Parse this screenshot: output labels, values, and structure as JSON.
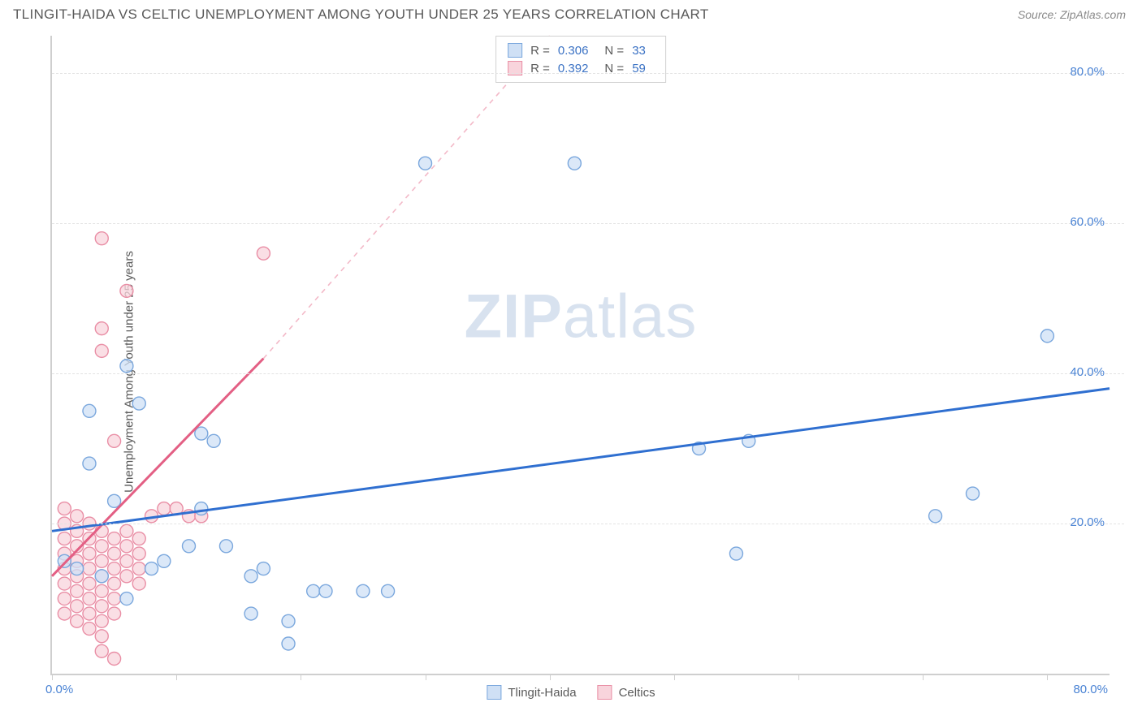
{
  "header": {
    "title": "TLINGIT-HAIDA VS CELTIC UNEMPLOYMENT AMONG YOUTH UNDER 25 YEARS CORRELATION CHART",
    "source": "Source: ZipAtlas.com"
  },
  "chart": {
    "type": "scatter",
    "ylabel": "Unemployment Among Youth under 25 years",
    "watermark_a": "ZIP",
    "watermark_b": "atlas",
    "background_color": "#ffffff",
    "grid_color": "#e3e3e3",
    "axis_color": "#cfcfcf",
    "xlim": [
      0,
      85
    ],
    "ylim": [
      0,
      85
    ],
    "x_min_label": "0.0%",
    "x_max_label": "80.0%",
    "y_tick_values": [
      20,
      40,
      60,
      80
    ],
    "y_tick_labels": [
      "20.0%",
      "40.0%",
      "60.0%",
      "80.0%"
    ],
    "x_tick_values": [
      0,
      10,
      20,
      30,
      40,
      50,
      60,
      70,
      80
    ],
    "marker_radius": 8,
    "marker_stroke_width": 1.4,
    "series": {
      "a": {
        "name": "Tlingit-Haida",
        "fill": "#cfe0f5",
        "stroke": "#7aa7dd",
        "line_color": "#2f6fd0",
        "line_dash_color": "#a9c6ec",
        "R": "0.306",
        "N": "33",
        "trend": {
          "x1": 0,
          "y1": 19,
          "x2": 85,
          "y2": 38
        },
        "trend_dash": null,
        "points": [
          [
            3,
            35
          ],
          [
            7,
            36
          ],
          [
            3,
            28
          ],
          [
            6,
            41
          ],
          [
            5,
            23
          ],
          [
            1,
            15
          ],
          [
            2,
            14
          ],
          [
            4,
            13
          ],
          [
            8,
            14
          ],
          [
            9,
            15
          ],
          [
            11,
            17
          ],
          [
            12,
            22
          ],
          [
            14,
            17
          ],
          [
            13,
            31
          ],
          [
            16,
            13
          ],
          [
            17,
            14
          ],
          [
            16,
            8
          ],
          [
            19,
            7
          ],
          [
            19,
            4
          ],
          [
            21,
            11
          ],
          [
            22,
            11
          ],
          [
            25,
            11
          ],
          [
            27,
            11
          ],
          [
            30,
            68
          ],
          [
            42,
            68
          ],
          [
            52,
            30
          ],
          [
            56,
            31
          ],
          [
            55,
            16
          ],
          [
            71,
            21
          ],
          [
            74,
            24
          ],
          [
            80,
            45
          ],
          [
            6,
            10
          ],
          [
            12,
            32
          ]
        ]
      },
      "b": {
        "name": "Celtics",
        "fill": "#f8d4dc",
        "stroke": "#e98ea5",
        "line_color": "#e35f84",
        "line_dash_color": "#f3b9c8",
        "R": "0.392",
        "N": "59",
        "trend": {
          "x1": 0,
          "y1": 13,
          "x2": 17,
          "y2": 42
        },
        "trend_dash": {
          "x1": 17,
          "y1": 42,
          "x2": 40,
          "y2": 85
        },
        "points": [
          [
            1,
            12
          ],
          [
            1,
            14
          ],
          [
            1,
            16
          ],
          [
            1,
            18
          ],
          [
            1,
            20
          ],
          [
            1,
            10
          ],
          [
            1,
            8
          ],
          [
            1,
            22
          ],
          [
            2,
            11
          ],
          [
            2,
            13
          ],
          [
            2,
            15
          ],
          [
            2,
            17
          ],
          [
            2,
            19
          ],
          [
            2,
            21
          ],
          [
            2,
            9
          ],
          [
            2,
            7
          ],
          [
            3,
            12
          ],
          [
            3,
            14
          ],
          [
            3,
            16
          ],
          [
            3,
            18
          ],
          [
            3,
            20
          ],
          [
            3,
            10
          ],
          [
            3,
            8
          ],
          [
            3,
            6
          ],
          [
            4,
            13
          ],
          [
            4,
            15
          ],
          [
            4,
            17
          ],
          [
            4,
            19
          ],
          [
            4,
            11
          ],
          [
            4,
            9
          ],
          [
            4,
            7
          ],
          [
            4,
            5
          ],
          [
            5,
            14
          ],
          [
            5,
            16
          ],
          [
            5,
            18
          ],
          [
            5,
            12
          ],
          [
            5,
            10
          ],
          [
            5,
            8
          ],
          [
            5,
            31
          ],
          [
            6,
            15
          ],
          [
            6,
            17
          ],
          [
            6,
            19
          ],
          [
            6,
            13
          ],
          [
            6,
            51
          ],
          [
            7,
            16
          ],
          [
            7,
            18
          ],
          [
            7,
            14
          ],
          [
            7,
            12
          ],
          [
            4,
            58
          ],
          [
            4,
            46
          ],
          [
            4,
            43
          ],
          [
            8,
            21
          ],
          [
            9,
            22
          ],
          [
            10,
            22
          ],
          [
            11,
            21
          ],
          [
            12,
            21
          ],
          [
            17,
            56
          ],
          [
            5,
            2
          ],
          [
            4,
            3
          ]
        ]
      }
    },
    "stats_labels": {
      "R": "R =",
      "N": "N ="
    },
    "legend_labels": {
      "a": "Tlingit-Haida",
      "b": "Celtics"
    }
  }
}
